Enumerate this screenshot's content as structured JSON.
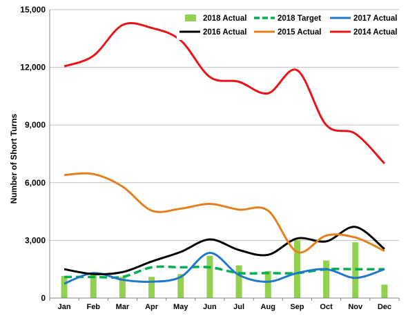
{
  "chart_data": {
    "type": "line",
    "title": "",
    "xlabel": "",
    "ylabel": "Number of Short Turns",
    "ylim": [
      0,
      15000
    ],
    "yticks": [
      0,
      3000,
      6000,
      9000,
      12000,
      15000
    ],
    "ytick_labels": [
      "0",
      "3,000",
      "6,000",
      "9,000",
      "12,000",
      "15,000"
    ],
    "grid": "horizontal",
    "legend_position": "top-right",
    "categories": [
      "Jan",
      "Feb",
      "Mar",
      "Apr",
      "May",
      "Jun",
      "Jul",
      "Aug",
      "Sep",
      "Oct",
      "Nov",
      "Dec"
    ],
    "bars": {
      "name": "2018 Actual",
      "color": "#92d050",
      "values": [
        1150,
        1300,
        1100,
        1100,
        1250,
        2200,
        1700,
        1400,
        3000,
        1950,
        2900,
        700
      ]
    },
    "series": [
      {
        "name": "2018 Target",
        "color": "#00b050",
        "dash": true,
        "values": [
          1100,
          1100,
          1100,
          1600,
          1600,
          1600,
          1300,
          1300,
          1300,
          1500,
          1500,
          1500
        ]
      },
      {
        "name": "2017 Actual",
        "color": "#1f78c8",
        "dash": false,
        "values": [
          750,
          1300,
          950,
          850,
          1100,
          2350,
          1200,
          850,
          1300,
          1500,
          1050,
          1500
        ]
      },
      {
        "name": "2016 Actual",
        "color": "#000000",
        "dash": false,
        "values": [
          1500,
          1250,
          1350,
          1900,
          2400,
          3050,
          2500,
          2250,
          3100,
          2950,
          3700,
          2550
        ]
      },
      {
        "name": "2015 Actual",
        "color": "#e57f1e",
        "dash": false,
        "values": [
          6400,
          6450,
          5800,
          4550,
          4650,
          4900,
          4600,
          4550,
          2400,
          3250,
          3150,
          2450
        ]
      },
      {
        "name": "2014 Actual",
        "color": "#e8141a",
        "dash": false,
        "values": [
          12050,
          12600,
          14200,
          14050,
          13400,
          11500,
          11250,
          10650,
          11850,
          9000,
          8550,
          7000
        ]
      }
    ],
    "legend_order": [
      "2018 Actual",
      "2018 Target",
      "2017 Actual",
      "2016 Actual",
      "2015 Actual",
      "2014 Actual"
    ]
  }
}
